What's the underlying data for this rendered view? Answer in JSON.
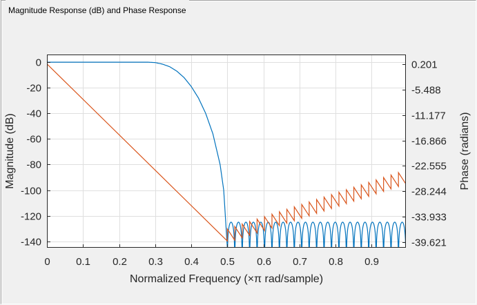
{
  "panel": {
    "title": "Magnitude Response (dB) and Phase Response"
  },
  "chart_data": {
    "type": "line",
    "title": "",
    "xlabel": "Normalized Frequency (×π rad/sample)",
    "ylabel_left": "Magnitude (dB)",
    "ylabel_right": "Phase (radians)",
    "xlim": [
      0,
      0.995
    ],
    "ylim_left": [
      -145,
      6
    ],
    "ylim_right": [
      -40.8,
      2.3
    ],
    "x_ticks": [
      "0",
      "0.1",
      "0.2",
      "0.3",
      "0.4",
      "0.5",
      "0.6",
      "0.7",
      "0.8",
      "0.9"
    ],
    "x_tick_values": [
      0,
      0.1,
      0.2,
      0.3,
      0.4,
      0.5,
      0.6,
      0.7,
      0.8,
      0.9
    ],
    "y_ticks_left": [
      "0",
      "-20",
      "-40",
      "-60",
      "-80",
      "-100",
      "-120",
      "-140"
    ],
    "y_tick_values_left": [
      0,
      -20,
      -40,
      -60,
      -80,
      -100,
      -120,
      -140
    ],
    "y_ticks_right": [
      "0.201",
      "-5.488",
      "-11.177",
      "-16.866",
      "-22.555",
      "-28.244",
      "-33.933",
      "-39.621"
    ],
    "y_tick_values_right": [
      0.201,
      -5.488,
      -11.177,
      -16.866,
      -22.555,
      -28.244,
      -33.933,
      -39.621
    ],
    "grid": true,
    "colors": {
      "magnitude": "#0072bd",
      "phase": "#d95319",
      "axes": "#262626",
      "grid": "#dfdfdf",
      "plot_bg": "#ffffff"
    },
    "series": [
      {
        "key": "magnitude",
        "axis": "left",
        "style": "lowpass",
        "passband_edge": 0.3,
        "stopband_edge": 0.5,
        "stopband_floor_db": -125,
        "stopband_lobes": 24,
        "x": [
          0,
          0.28,
          0.3,
          0.32,
          0.34,
          0.36,
          0.38,
          0.4,
          0.42,
          0.44,
          0.46,
          0.48,
          0.49,
          0.5
        ],
        "y": [
          0,
          0,
          -0.3,
          -1.5,
          -3.5,
          -7,
          -12,
          -19,
          -28,
          -40,
          -56,
          -80,
          -100,
          -145
        ]
      },
      {
        "key": "phase",
        "axis": "right",
        "style": "linear-phase",
        "x": [
          0,
          0.5
        ],
        "y": [
          0.201,
          -39.3
        ],
        "stopband_phase_start": -38.6,
        "stopband_phase_end": -25.5,
        "stopband_jump": 2.0,
        "stopband_teeth": 24
      }
    ]
  }
}
